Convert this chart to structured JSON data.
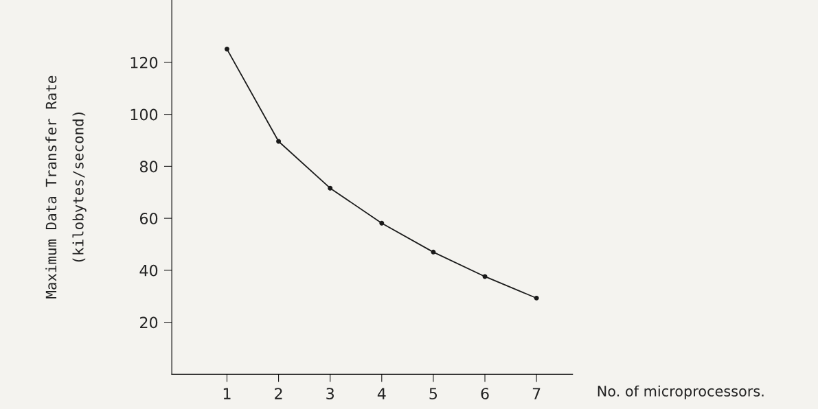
{
  "chart_data": {
    "type": "line",
    "xlabel": "No. of microprocessors.",
    "ylabel": "Maximum Data Transfer Rate\n(kilobytes/second)",
    "x": [
      1,
      2,
      3,
      4,
      5,
      6,
      7
    ],
    "series": [
      {
        "color": "#1a1a1a",
        "values": [
          125.1,
          89.6,
          71.6,
          58.1,
          47.0,
          37.6,
          29.3
        ]
      }
    ],
    "xlim": [
      -0.07,
      7.7
    ],
    "ylim": [
      0,
      144
    ],
    "xticks": [
      1,
      2,
      3,
      4,
      5,
      6,
      7
    ],
    "yticks": [
      20,
      40,
      60,
      80,
      100,
      120
    ],
    "grid": false,
    "legend": false,
    "marker": "circle",
    "line_style": "solid"
  }
}
